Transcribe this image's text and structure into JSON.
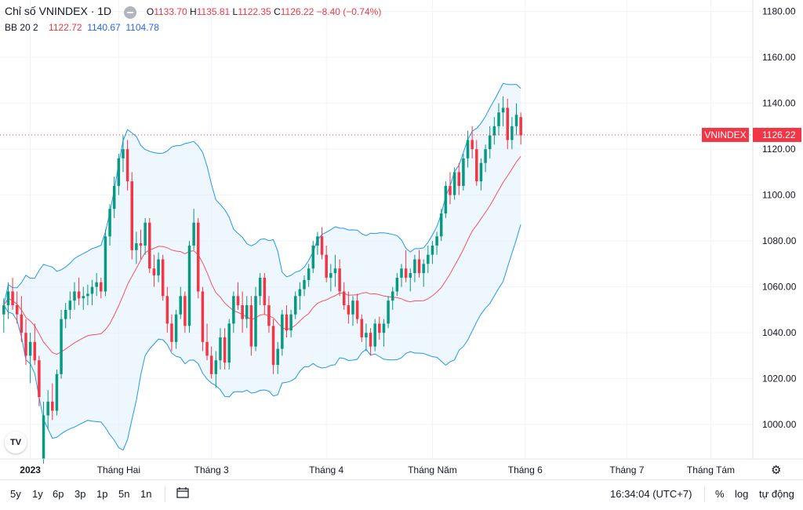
{
  "legend": {
    "symbol": "Chỉ số VNINDEX · 1D",
    "o_label": "O",
    "o_val": "1133.70",
    "h_label": "H",
    "h_val": "1135.81",
    "l_label": "L",
    "l_val": "1122.35",
    "c_label": "C",
    "c_val": "1126.22",
    "change": "−8.40 (−0.74%)",
    "bb_label": "BB 20 2",
    "bb_mid": "1122.72",
    "bb_upper": "1140.67",
    "bb_lower": "1104.78"
  },
  "price_label": {
    "name": "VNINDEX",
    "value": "1126.22",
    "color": "#f23645"
  },
  "colors": {
    "up": "#089981",
    "down": "#f23645",
    "basis": "#f7525f",
    "band": "#2196f3",
    "fill": "#e3f2fd",
    "grid": "#f0f3fa"
  },
  "bottom_bar": {
    "ranges": [
      "5y",
      "1y",
      "6p",
      "3p",
      "1p",
      "5n",
      "1n"
    ],
    "time": "16:34:04 (UTC+7)",
    "percent": "%",
    "log": "log",
    "auto": "tự động"
  },
  "tv_logo": "TV",
  "chart_data": {
    "type": "candlestick",
    "ylim": [
      985,
      1185
    ],
    "y_ticks": [
      1000,
      1020,
      1040,
      1060,
      1080,
      1100,
      1120,
      1140,
      1160,
      1180
    ],
    "x_labels": [
      "2023",
      "Tháng Hai",
      "Tháng 3",
      "Tháng 4",
      "Tháng Năm",
      "Tháng 6",
      "Tháng 7",
      "Tháng Tám"
    ],
    "x_label_index": [
      6,
      26,
      47,
      73,
      97,
      118,
      141,
      160
    ],
    "n_slots": 170,
    "last_price": 1126.22,
    "candles": [
      [
        1048,
        1055,
        1040,
        1052
      ],
      [
        1052,
        1062,
        1046,
        1058
      ],
      [
        1058,
        1064,
        1050,
        1052
      ],
      [
        1052,
        1058,
        1044,
        1048
      ],
      [
        1048,
        1056,
        1036,
        1040
      ],
      [
        1040,
        1046,
        1026,
        1030
      ],
      [
        1030,
        1040,
        1018,
        1036
      ],
      [
        1036,
        1044,
        1026,
        1028
      ],
      [
        1028,
        1030,
        1008,
        1012
      ],
      [
        985,
        1010,
        983,
        1004
      ],
      [
        1004,
        1015,
        998,
        1010
      ],
      [
        1010,
        1018,
        1002,
        1006
      ],
      [
        1006,
        1024,
        1004,
        1022
      ],
      [
        1022,
        1050,
        1020,
        1046
      ],
      [
        1046,
        1053,
        1042,
        1050
      ],
      [
        1050,
        1058,
        1046,
        1054
      ],
      [
        1054,
        1062,
        1050,
        1058
      ],
      [
        1058,
        1064,
        1052,
        1055
      ],
      [
        1055,
        1060,
        1050,
        1056
      ],
      [
        1056,
        1061,
        1052,
        1057
      ],
      [
        1057,
        1063,
        1052,
        1060
      ],
      [
        1060,
        1066,
        1056,
        1062
      ],
      [
        1062,
        1064,
        1055,
        1058
      ],
      [
        1058,
        1085,
        1056,
        1082
      ],
      [
        1082,
        1096,
        1078,
        1094
      ],
      [
        1094,
        1108,
        1090,
        1104
      ],
      [
        1104,
        1118,
        1100,
        1116
      ],
      [
        1116,
        1126,
        1110,
        1120
      ],
      [
        1120,
        1124,
        1102,
        1106
      ],
      [
        1106,
        1110,
        1072,
        1076
      ],
      [
        1076,
        1084,
        1070,
        1079
      ],
      [
        1079,
        1085,
        1072,
        1078
      ],
      [
        1078,
        1090,
        1074,
        1088
      ],
      [
        1088,
        1090,
        1066,
        1068
      ],
      [
        1068,
        1074,
        1060,
        1065
      ],
      [
        1065,
        1075,
        1062,
        1072
      ],
      [
        1072,
        1074,
        1054,
        1056
      ],
      [
        1056,
        1060,
        1040,
        1044
      ],
      [
        1044,
        1048,
        1032,
        1036
      ],
      [
        1036,
        1050,
        1033,
        1048
      ],
      [
        1048,
        1060,
        1046,
        1056
      ],
      [
        1056,
        1058,
        1040,
        1043
      ],
      [
        1043,
        1080,
        1040,
        1078
      ],
      [
        1078,
        1094,
        1076,
        1088
      ],
      [
        1088,
        1090,
        1055,
        1058
      ],
      [
        1058,
        1060,
        1032,
        1036
      ],
      [
        1036,
        1044,
        1028,
        1030
      ],
      [
        1030,
        1034,
        1020,
        1022
      ],
      [
        1022,
        1032,
        1016,
        1028
      ],
      [
        1028,
        1042,
        1024,
        1038
      ],
      [
        1038,
        1042,
        1024,
        1027
      ],
      [
        1027,
        1046,
        1024,
        1044
      ],
      [
        1044,
        1058,
        1040,
        1056
      ],
      [
        1056,
        1062,
        1050,
        1052
      ],
      [
        1052,
        1058,
        1040,
        1046
      ],
      [
        1046,
        1056,
        1042,
        1052
      ],
      [
        1052,
        1056,
        1030,
        1034
      ],
      [
        1034,
        1060,
        1032,
        1056
      ],
      [
        1056,
        1066,
        1052,
        1064
      ],
      [
        1064,
        1066,
        1048,
        1052
      ],
      [
        1052,
        1056,
        1040,
        1043
      ],
      [
        1043,
        1046,
        1022,
        1026
      ],
      [
        1026,
        1036,
        1022,
        1033
      ],
      [
        1033,
        1050,
        1030,
        1048
      ],
      [
        1048,
        1052,
        1038,
        1041
      ],
      [
        1041,
        1050,
        1038,
        1048
      ],
      [
        1048,
        1058,
        1046,
        1056
      ],
      [
        1056,
        1062,
        1050,
        1059
      ],
      [
        1059,
        1065,
        1056,
        1063
      ],
      [
        1063,
        1070,
        1060,
        1068
      ],
      [
        1068,
        1080,
        1066,
        1078
      ],
      [
        1078,
        1084,
        1074,
        1082
      ],
      [
        1082,
        1086,
        1072,
        1074
      ],
      [
        1074,
        1078,
        1062,
        1064
      ],
      [
        1064,
        1070,
        1058,
        1066
      ],
      [
        1066,
        1074,
        1060,
        1068
      ],
      [
        1068,
        1072,
        1056,
        1058
      ],
      [
        1058,
        1062,
        1050,
        1052
      ],
      [
        1052,
        1058,
        1044,
        1048
      ],
      [
        1048,
        1056,
        1043,
        1054
      ],
      [
        1054,
        1057,
        1044,
        1046
      ],
      [
        1046,
        1048,
        1036,
        1038
      ],
      [
        1038,
        1044,
        1032,
        1040
      ],
      [
        1040,
        1042,
        1030,
        1034
      ],
      [
        1034,
        1046,
        1032,
        1044
      ],
      [
        1044,
        1047,
        1037,
        1040
      ],
      [
        1040,
        1046,
        1034,
        1044
      ],
      [
        1044,
        1056,
        1042,
        1054
      ],
      [
        1054,
        1060,
        1050,
        1058
      ],
      [
        1058,
        1066,
        1056,
        1064
      ],
      [
        1064,
        1070,
        1060,
        1068
      ],
      [
        1068,
        1076,
        1062,
        1064
      ],
      [
        1064,
        1068,
        1058,
        1066
      ],
      [
        1066,
        1074,
        1062,
        1072
      ],
      [
        1072,
        1076,
        1064,
        1066
      ],
      [
        1066,
        1072,
        1060,
        1070
      ],
      [
        1070,
        1078,
        1066,
        1074
      ],
      [
        1074,
        1080,
        1070,
        1078
      ],
      [
        1078,
        1084,
        1074,
        1082
      ],
      [
        1082,
        1094,
        1080,
        1092
      ],
      [
        1092,
        1106,
        1090,
        1104
      ],
      [
        1104,
        1110,
        1096,
        1100
      ],
      [
        1100,
        1112,
        1098,
        1110
      ],
      [
        1110,
        1114,
        1100,
        1104
      ],
      [
        1104,
        1118,
        1102,
        1116
      ],
      [
        1116,
        1128,
        1112,
        1124
      ],
      [
        1124,
        1130,
        1116,
        1120
      ],
      [
        1120,
        1124,
        1104,
        1106
      ],
      [
        1106,
        1116,
        1102,
        1114
      ],
      [
        1114,
        1122,
        1110,
        1120
      ],
      [
        1120,
        1130,
        1116,
        1126
      ],
      [
        1126,
        1134,
        1122,
        1130
      ],
      [
        1130,
        1140,
        1126,
        1136
      ],
      [
        1136,
        1143,
        1130,
        1138
      ],
      [
        1138,
        1142,
        1120,
        1124
      ],
      [
        1124,
        1134,
        1120,
        1130
      ],
      [
        1130,
        1140,
        1126,
        1135
      ],
      [
        1134,
        1136,
        1122,
        1126
      ]
    ]
  }
}
